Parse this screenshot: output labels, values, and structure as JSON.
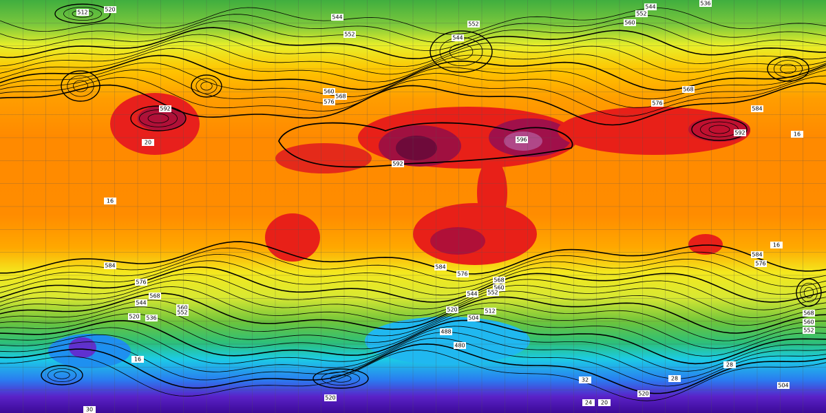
{
  "map": {
    "contour_labels": [
      "512",
      "520",
      "544",
      "552",
      "544",
      "552",
      "544",
      "552",
      "560",
      "536",
      "568",
      "576",
      "584",
      "592",
      "592",
      "596",
      "592",
      "576",
      "568",
      "560",
      "584",
      "576",
      "568",
      "560",
      "552",
      "544",
      "536",
      "520",
      "584",
      "576",
      "568",
      "560",
      "552",
      "544",
      "520",
      "504",
      "512",
      "488",
      "480",
      "576",
      "584",
      "568",
      "560",
      "552",
      "504",
      "520",
      "520",
      "16",
      "16",
      "16",
      "20",
      "20",
      "24",
      "28",
      "30",
      "32",
      "16",
      "28"
    ]
  }
}
